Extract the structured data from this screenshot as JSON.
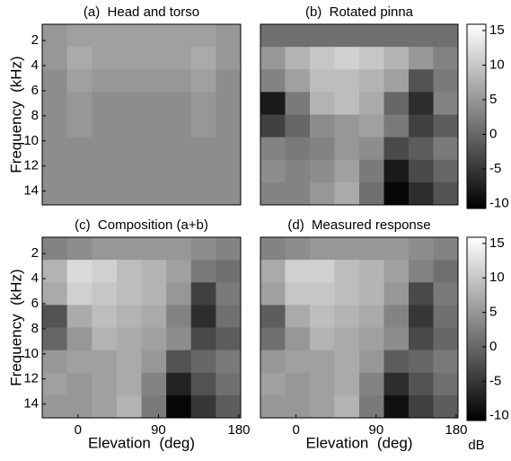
{
  "chart_data": [
    {
      "type": "heatmap",
      "title": "(a)  Head and torso",
      "y_label": "Frequency  (kHz)",
      "xlim": [
        -40,
        182
      ],
      "ylim": [
        0.7,
        15.1
      ],
      "yticks": [
        2,
        4,
        6,
        8,
        10,
        12,
        14
      ],
      "z": [
        [
          5,
          6,
          6,
          6,
          6,
          6,
          6,
          5
        ],
        [
          5,
          7,
          6,
          6,
          6,
          6,
          7,
          5
        ],
        [
          4,
          6,
          5,
          5,
          5,
          5,
          6,
          4
        ],
        [
          4,
          5,
          4,
          4,
          4,
          4,
          5,
          4
        ],
        [
          4,
          5,
          4,
          4,
          4,
          4,
          5,
          4
        ],
        [
          4,
          4,
          4,
          4,
          4,
          4,
          4,
          4
        ],
        [
          4,
          4,
          4,
          4,
          4,
          4,
          4,
          4
        ],
        [
          4,
          4,
          4,
          4,
          4,
          4,
          4,
          4
        ]
      ]
    },
    {
      "type": "heatmap",
      "title": "(b)  Rotated pinna",
      "xlim": [
        -40,
        182
      ],
      "ylim": [
        0.7,
        15.1
      ],
      "z": [
        [
          1,
          1,
          1,
          1,
          1,
          1,
          1,
          1
        ],
        [
          5,
          8,
          10,
          11,
          10,
          8,
          5,
          3
        ],
        [
          3,
          6,
          9,
          9,
          8,
          6,
          -2,
          2
        ],
        [
          -8,
          2,
          8,
          9,
          7,
          0,
          -6,
          3
        ],
        [
          -4,
          0,
          4,
          5,
          6,
          2,
          -4,
          -1
        ],
        [
          3,
          2,
          3,
          5,
          4,
          -3,
          -1,
          2
        ],
        [
          4,
          3,
          4,
          6,
          2,
          -8,
          -3,
          0
        ],
        [
          3,
          3,
          5,
          7,
          1,
          -10,
          -6,
          -2
        ]
      ],
      "colorbar": {
        "lim": [
          -10.7,
          15.9
        ],
        "ticks": [
          -10,
          -5,
          0,
          5,
          10,
          15
        ]
      }
    },
    {
      "type": "heatmap",
      "title": "(c)  Composition (a+b)",
      "y_label": "Frequency  (kHz)",
      "x_label": "Elevation  (deg)",
      "xlim": [
        -40,
        182
      ],
      "ylim": [
        0.7,
        15.1
      ],
      "xticks": [
        0,
        90,
        180
      ],
      "yticks": [
        2,
        4,
        6,
        8,
        10,
        12,
        14
      ],
      "z": [
        [
          3,
          4,
          5,
          5,
          5,
          5,
          4,
          3
        ],
        [
          8,
          12,
          11,
          9,
          8,
          6,
          2,
          1
        ],
        [
          7,
          11,
          10,
          9,
          8,
          5,
          -4,
          2
        ],
        [
          -2,
          7,
          9,
          8,
          7,
          3,
          -6,
          1
        ],
        [
          0,
          5,
          8,
          7,
          6,
          4,
          -3,
          -1
        ],
        [
          5,
          6,
          6,
          7,
          5,
          -2,
          0,
          2
        ],
        [
          6,
          5,
          6,
          7,
          3,
          -7,
          -2,
          1
        ],
        [
          5,
          5,
          6,
          8,
          2,
          -10,
          -5,
          -1
        ]
      ]
    },
    {
      "type": "heatmap",
      "title": "(d)  Measured response",
      "x_label": "Elevation  (deg)",
      "xlim": [
        -40,
        182
      ],
      "ylim": [
        0.7,
        15.1
      ],
      "xticks": [
        0,
        90,
        180
      ],
      "z": [
        [
          3,
          4,
          5,
          5,
          5,
          5,
          4,
          3
        ],
        [
          7,
          11,
          11,
          9,
          8,
          6,
          3,
          1
        ],
        [
          6,
          10,
          10,
          9,
          8,
          5,
          -3,
          2
        ],
        [
          -1,
          7,
          9,
          8,
          7,
          3,
          -5,
          1
        ],
        [
          1,
          5,
          8,
          7,
          6,
          4,
          -3,
          0
        ],
        [
          5,
          6,
          6,
          7,
          5,
          -1,
          0,
          2
        ],
        [
          6,
          5,
          6,
          7,
          3,
          -6,
          -2,
          1
        ],
        [
          5,
          5,
          6,
          8,
          2,
          -9,
          -4,
          -1
        ]
      ],
      "colorbar": {
        "lim": [
          -10.7,
          15.9
        ],
        "ticks": [
          -10,
          -5,
          0,
          5,
          10,
          15
        ],
        "label": "dB"
      }
    }
  ]
}
